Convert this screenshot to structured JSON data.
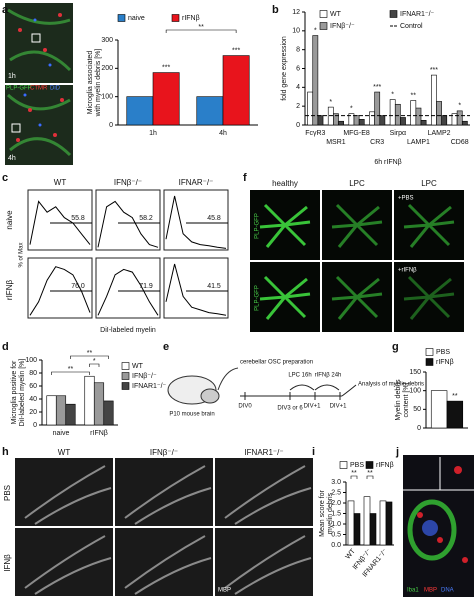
{
  "panel_letters": [
    "a",
    "b",
    "c",
    "d",
    "e",
    "f",
    "g",
    "h",
    "i",
    "j"
  ],
  "chart_data": [
    {
      "type": "bar",
      "ylabel": [
        "Microglia associated",
        "with myelin debris [%]"
      ],
      "categories": [
        "1h",
        "4h"
      ],
      "series": [
        {
          "name": "naive",
          "color": "#2a7fc9",
          "values": [
            100,
            100
          ]
        },
        {
          "name": "rIFNβ",
          "color": "#e8141c",
          "values": [
            185,
            245
          ]
        }
      ],
      "ylim": [
        0,
        300
      ],
      "yticks": [
        0,
        100,
        200,
        300
      ],
      "annotations": [
        "***",
        "***",
        "**"
      ]
    },
    {
      "type": "bar",
      "ylabel": [
        "fold gene expression"
      ],
      "xlabel": "6h rIFNβ",
      "categories": [
        "FcγR3",
        "MSR1",
        "MFG-E8",
        "CR3",
        "Sirpα",
        "LAMP1",
        "LAMP2",
        "CD68"
      ],
      "series": [
        {
          "name": "WT",
          "color": "#ffffff",
          "values": [
            3.5,
            1.9,
            1.2,
            1.4,
            2.7,
            2.6,
            5.3,
            1.2
          ]
        },
        {
          "name": "IFNβ⁻/⁻",
          "color": "#9a9a9a",
          "values": [
            9.5,
            1.2,
            1.0,
            3.5,
            2.2,
            1.8,
            2.5,
            1.5
          ]
        },
        {
          "name": "IFNAR1⁻/⁻",
          "color": "#444444",
          "values": [
            1.0,
            0.4,
            0.6,
            1.0,
            0.8,
            0.5,
            1.0,
            0.4
          ]
        }
      ],
      "control": {
        "name": "Control",
        "value": 1
      },
      "ylim": [
        0,
        12
      ],
      "yticks": [
        0,
        2,
        4,
        6,
        8,
        10,
        12
      ],
      "annotations": [
        "*",
        "*",
        "*",
        "***",
        "*",
        "**",
        "***",
        "*"
      ]
    },
    {
      "type": "bar",
      "ylabel": [
        "Microglia positive for",
        "DiI-labeled myelin [%]"
      ],
      "categories": [
        "naive",
        "rIFNβ"
      ],
      "series": [
        {
          "name": "WT",
          "color": "#ffffff",
          "values": [
            45,
            75
          ]
        },
        {
          "name": "IFNβ⁻/⁻",
          "color": "#9a9a9a",
          "values": [
            45,
            65
          ]
        },
        {
          "name": "IFNAR1⁻/⁻",
          "color": "#444444",
          "values": [
            32,
            37
          ]
        }
      ],
      "ylim": [
        0,
        100
      ],
      "yticks": [
        0,
        20,
        40,
        60,
        80,
        100
      ],
      "annotations": [
        "**",
        "*",
        "**"
      ]
    },
    {
      "type": "bar",
      "ylabel": [
        "Myelin debris",
        "content [%]"
      ],
      "categories": [
        null
      ],
      "series": [
        {
          "name": "PBS",
          "color": "#ffffff",
          "values": [
            100
          ]
        },
        {
          "name": "rIFNβ",
          "color": "#111111",
          "values": [
            72
          ]
        }
      ],
      "ylim": [
        0,
        150
      ],
      "yticks": [
        0,
        50,
        100,
        150
      ],
      "annotations": [
        "**"
      ]
    },
    {
      "type": "bar",
      "ylabel": [
        "Mean score for",
        "myelin debris"
      ],
      "categories": [
        "WT",
        "IFNβ⁻/⁻",
        "IFNAR1⁻/⁻"
      ],
      "series": [
        {
          "name": "PBS",
          "color": "#ffffff",
          "values": [
            2.1,
            2.3,
            2.1
          ]
        },
        {
          "name": "rIFNβ",
          "color": "#111111",
          "values": [
            1.5,
            1.5,
            2.05
          ]
        }
      ],
      "ylim": [
        0,
        3
      ],
      "yticks": [
        {
          "value": 0,
          "label": "0.0"
        },
        {
          "value": 0.5,
          "label": "0.5"
        },
        {
          "value": 1,
          "label": "1.0"
        },
        {
          "value": 1.5,
          "label": "1.5"
        },
        {
          "value": 2,
          "label": "2.0"
        },
        {
          "value": 2.5,
          "label": "2.5"
        },
        {
          "value": 3,
          "label": "3.0"
        }
      ],
      "annotations": [
        "**",
        "**"
      ]
    }
  ],
  "panel_a": {
    "time_labels": [
      "1h",
      "4h"
    ],
    "stain_labels": [
      "PLP-GFP",
      "CTMR",
      "DiD"
    ]
  },
  "panel_c": {
    "columns": [
      "WT",
      "IFNβ⁻/⁻",
      "IFNAR⁻/⁻"
    ],
    "rows": [
      "naive",
      "rIFNβ"
    ],
    "gate_values": [
      "55.8",
      "58.2",
      "45.8",
      "76.0",
      "71.9",
      "41.5"
    ],
    "ylabel": "% of Max",
    "xlabel": "DiI-labeled myelin"
  },
  "panel_e": {
    "brain": "P10 mouse brain",
    "prep": "cerebellar OSC preparation",
    "div0": "DIV0",
    "div3": "DIV3 or 6",
    "lpc": "LPC 16h",
    "ifn": "rIFNβ 24h",
    "div1a": "DIV+1",
    "div1b": "DIV+1",
    "analysis": "Analysis of myelin debris"
  },
  "panel_f": {
    "columns": [
      "healthy",
      "LPC",
      "LPC"
    ],
    "treatments": [
      "+PBS",
      "+rIFNβ"
    ],
    "stain_labels": [
      "PLP-GFP",
      "PLP-GFP"
    ]
  },
  "panel_h": {
    "columns": [
      "WT",
      "IFNβ⁻/⁻",
      "IFNAR1⁻/⁻"
    ],
    "rows": [
      "PBS",
      "IFNβ"
    ],
    "stain": "MBP"
  },
  "panel_j": {
    "stain_labels": [
      "Iba1",
      "MBP",
      "DNA"
    ]
  }
}
